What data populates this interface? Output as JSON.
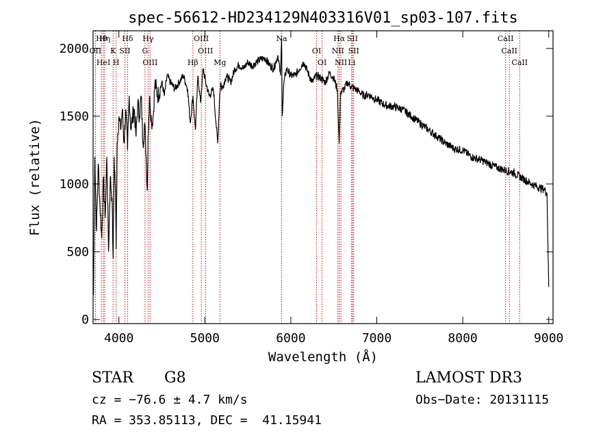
{
  "chart_data": {
    "type": "line",
    "title": "spec-56612-HD234129N403316V01_sp03-107.fits",
    "xlabel": "Wavelength (Å)",
    "ylabel": "Flux (relative)",
    "xlim": [
      3700,
      9050
    ],
    "ylim": [
      -30,
      2130
    ],
    "xticks": [
      4000,
      5000,
      6000,
      7000,
      8000,
      9000
    ],
    "yticks": [
      0,
      500,
      1000,
      1500,
      2000
    ],
    "series": [
      {
        "name": "spectrum",
        "x": [
          3705,
          3720,
          3740,
          3760,
          3780,
          3800,
          3820,
          3840,
          3860,
          3880,
          3900,
          3920,
          3933,
          3945,
          3960,
          3968,
          3980,
          4000,
          4020,
          4040,
          4060,
          4080,
          4101,
          4120,
          4140,
          4160,
          4180,
          4200,
          4220,
          4240,
          4260,
          4280,
          4300,
          4320,
          4330,
          4340,
          4350,
          4360,
          4380,
          4400,
          4420,
          4450,
          4480,
          4500,
          4530,
          4560,
          4600,
          4650,
          4700,
          4750,
          4800,
          4830,
          4861,
          4890,
          4920,
          4950,
          4980,
          5010,
          5050,
          5100,
          5130,
          5150,
          5172,
          5185,
          5200,
          5250,
          5300,
          5350,
          5400,
          5450,
          5500,
          5550,
          5600,
          5650,
          5700,
          5750,
          5800,
          5850,
          5880,
          5893,
          5900,
          5920,
          5950,
          6000,
          6050,
          6100,
          6150,
          6200,
          6250,
          6300,
          6350,
          6400,
          6450,
          6500,
          6540,
          6563,
          6580,
          6620,
          6660,
          6700,
          6750,
          6800,
          6850,
          6900,
          6950,
          7000,
          7100,
          7200,
          7300,
          7400,
          7500,
          7600,
          7700,
          7800,
          7900,
          8000,
          8100,
          8200,
          8300,
          8400,
          8500,
          8600,
          8700,
          8800,
          8900,
          8950,
          8980,
          9000
        ],
        "values": [
          180,
          1200,
          650,
          1150,
          850,
          600,
          1050,
          750,
          1200,
          500,
          1050,
          900,
          450,
          1200,
          950,
          520,
          1300,
          1500,
          1400,
          1550,
          1300,
          1550,
          1250,
          1650,
          1400,
          1500,
          1550,
          1350,
          1600,
          1500,
          1650,
          1300,
          1450,
          1150,
          950,
          1350,
          1500,
          1650,
          1450,
          1500,
          1750,
          1650,
          1700,
          1750,
          1650,
          1800,
          1750,
          1700,
          1750,
          1800,
          1700,
          1450,
          1650,
          1400,
          1800,
          1600,
          1850,
          1750,
          1650,
          1700,
          1450,
          1300,
          1650,
          1750,
          1700,
          1800,
          1750,
          1850,
          1880,
          1850,
          1900,
          1870,
          1900,
          1920,
          1930,
          1880,
          1850,
          1950,
          1800,
          2080,
          1500,
          1750,
          1850,
          1800,
          1800,
          1850,
          1900,
          1820,
          1750,
          1800,
          1780,
          1750,
          1820,
          1780,
          1700,
          1300,
          1680,
          1700,
          1750,
          1720,
          1700,
          1680,
          1650,
          1660,
          1640,
          1620,
          1580,
          1570,
          1550,
          1500,
          1450,
          1400,
          1350,
          1300,
          1260,
          1250,
          1200,
          1180,
          1150,
          1120,
          1100,
          1080,
          1040,
          1000,
          970,
          960,
          930,
          240
        ]
      }
    ],
    "lines": [
      {
        "label": "Hθ",
        "wl": 3797
      },
      {
        "label": "OII",
        "wl": 3727
      },
      {
        "label": "HeI",
        "wl": 3820
      },
      {
        "label": "Hη",
        "wl": 3835
      },
      {
        "label": "K",
        "wl": 3933
      },
      {
        "label": "H",
        "wl": 3968
      },
      {
        "label": "Hδ",
        "wl": 4101
      },
      {
        "label": "SII",
        "wl": 4070
      },
      {
        "label": "OIII",
        "wl": 4363
      },
      {
        "label": "Hγ",
        "wl": 4340
      },
      {
        "label": "G",
        "wl": 4304
      },
      {
        "label": "Hβ",
        "wl": 4861
      },
      {
        "label": "OIII",
        "wl": 4959
      },
      {
        "label": "OIII",
        "wl": 5007
      },
      {
        "label": "Mg",
        "wl": 5175
      },
      {
        "label": "Na",
        "wl": 5893
      },
      {
        "label": "OI",
        "wl": 6300
      },
      {
        "label": "OI",
        "wl": 6364
      },
      {
        "label": "Hα",
        "wl": 6563
      },
      {
        "label": "NII",
        "wl": 6548
      },
      {
        "label": "NII",
        "wl": 6583
      },
      {
        "label": "SII",
        "wl": 6716
      },
      {
        "label": "SII",
        "wl": 6731
      },
      {
        "label": "Li",
        "wl": 6708
      },
      {
        "label": "CaII",
        "wl": 8498
      },
      {
        "label": "CaII",
        "wl": 8542
      },
      {
        "label": "CaII",
        "wl": 8662
      }
    ]
  },
  "info": {
    "class": "STAR",
    "subclass": "G8",
    "survey": "LAMOST DR3",
    "cz": "cz = −76.6 ± 4.7 km/s",
    "obs_date": "Obs−Date: 20131115",
    "coords": "RA = 353.85113, DEC =  41.15941"
  },
  "colors": {
    "spectrum": "#000000",
    "lines": "#cc0000",
    "axes": "#000000"
  }
}
